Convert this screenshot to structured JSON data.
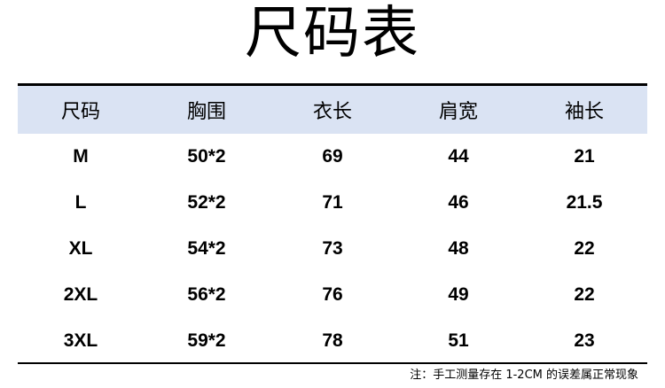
{
  "title": "尺码表",
  "table": {
    "headers": [
      "尺码",
      "胸围",
      "衣长",
      "肩宽",
      "袖长"
    ],
    "rows": [
      [
        "M",
        "50*2",
        "69",
        "44",
        "21"
      ],
      [
        "L",
        "52*2",
        "71",
        "46",
        "21.5"
      ],
      [
        "XL",
        "54*2",
        "73",
        "48",
        "22"
      ],
      [
        "2XL",
        "56*2",
        "76",
        "49",
        "22"
      ],
      [
        "3XL",
        "59*2",
        "78",
        "51",
        "23"
      ]
    ]
  },
  "note": "注：手工测量存在 1-2CM 的误差属正常现象",
  "colors": {
    "header_bg": "#dae3f3"
  }
}
